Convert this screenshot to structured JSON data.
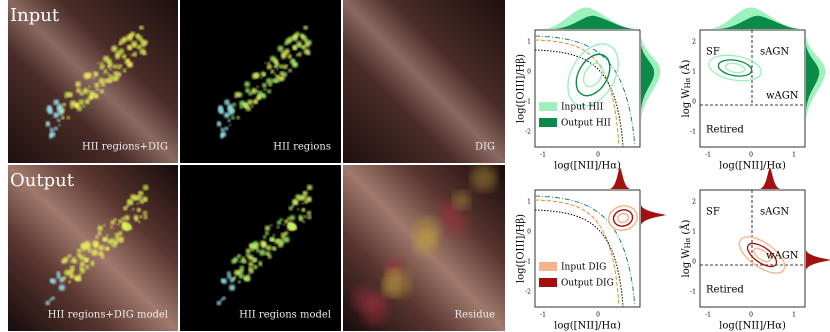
{
  "rows": [
    {
      "title": "Input",
      "captions": [
        "HII regions+DIG",
        "HII regions",
        "DIG"
      ]
    },
    {
      "title": "Output",
      "captions": [
        "HII regions+DIG model",
        "HII regions model",
        "Residue"
      ]
    }
  ],
  "plots": [
    {
      "ylabel": "log([OIII]/Hβ)",
      "xlabel": "log([NII]/Hα)",
      "legend": [
        "Input HII",
        "Output HII"
      ],
      "xticks": [
        "-1",
        "0"
      ],
      "yticks": [
        "1",
        "0",
        "-1",
        "-2"
      ]
    },
    {
      "ylabel": {
        "main": "log W",
        "sub": "Hα",
        "unit": "(Å)"
      },
      "xlabel": "log([NII]/Hα)",
      "regions": [
        "SF",
        "sAGN",
        "wAGN",
        "Retired"
      ],
      "xticks": [
        "-1",
        "0",
        "1"
      ],
      "yticks": [
        "2",
        "1",
        "0",
        "-1"
      ]
    },
    {
      "ylabel": "log([OIII]/Hβ)",
      "xlabel": "log([NII]/Hα)",
      "legend": [
        "Input DIG",
        "Output DIG"
      ],
      "xticks": [
        "-1",
        "0"
      ],
      "yticks": [
        "1",
        "0",
        "-1",
        "-2"
      ]
    },
    {
      "ylabel": {
        "main": "log W",
        "sub": "Hα",
        "unit": "(Å)"
      },
      "xlabel": "log([NII]/Hα)",
      "regions": [
        "SF",
        "sAGN",
        "wAGN",
        "Retired"
      ],
      "xticks": [
        "-1",
        "0",
        "1"
      ],
      "yticks": [
        "2",
        "1",
        "0",
        "-1"
      ]
    }
  ]
}
